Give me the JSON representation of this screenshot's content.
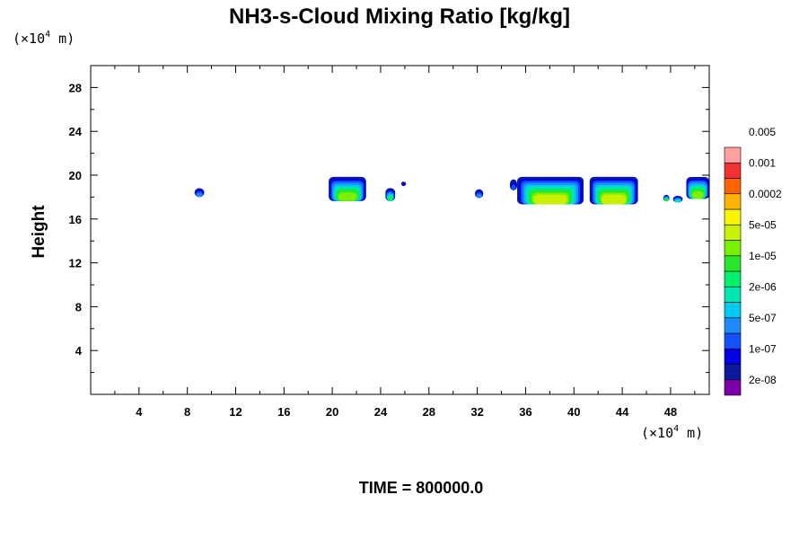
{
  "chart_data": {
    "type": "contour",
    "title": "NH3-s-Cloud Mixing Ratio [kg/kg]",
    "xlabel": "",
    "ylabel": "Height",
    "x_unit": {
      "prefix": "(×10",
      "exponent": "4",
      "suffix": " m)"
    },
    "y_unit": {
      "prefix": "(×10",
      "exponent": "4",
      "suffix": " m)"
    },
    "xlim": [
      0,
      51.2
    ],
    "ylim": [
      0,
      30
    ],
    "xticks": [
      4,
      8,
      12,
      16,
      20,
      24,
      28,
      32,
      36,
      40,
      44,
      48
    ],
    "yticks": [
      4,
      8,
      12,
      16,
      20,
      24,
      28
    ],
    "annotation": "TIME = 800000.0",
    "colorbar": {
      "colors": [
        "#7b00a8",
        "#0a1a9c",
        "#0000e6",
        "#1450ff",
        "#1e8cff",
        "#00c8f0",
        "#00e6b4",
        "#00f06e",
        "#28e628",
        "#78f000",
        "#c8f000",
        "#f5f500",
        "#ffb400",
        "#ff6400",
        "#f03232",
        "#ffa0a0"
      ],
      "labels": [
        "2e-08",
        "1e-07",
        "5e-07",
        "2e-06",
        "1e-05",
        "5e-05",
        "0.0002",
        "0.001",
        "0.005"
      ]
    },
    "cloud_patches": [
      {
        "x0": 8.6,
        "x1": 9.4,
        "y0": 18.0,
        "y1": 18.8,
        "max_level": 4
      },
      {
        "x0": 19.7,
        "x1": 22.8,
        "y0": 17.6,
        "y1": 19.8,
        "max_level": 9
      },
      {
        "x0": 24.4,
        "x1": 25.2,
        "y0": 17.6,
        "y1": 18.8,
        "max_level": 7
      },
      {
        "x0": 25.7,
        "x1": 26.1,
        "y0": 19.0,
        "y1": 19.4,
        "max_level": 2
      },
      {
        "x0": 31.8,
        "x1": 32.5,
        "y0": 17.9,
        "y1": 18.7,
        "max_level": 4
      },
      {
        "x0": 34.7,
        "x1": 35.3,
        "y0": 18.6,
        "y1": 19.6,
        "max_level": 3
      },
      {
        "x0": 35.3,
        "x1": 40.8,
        "y0": 17.3,
        "y1": 19.8,
        "max_level": 10
      },
      {
        "x0": 41.3,
        "x1": 45.3,
        "y0": 17.3,
        "y1": 19.8,
        "max_level": 10
      },
      {
        "x0": 47.4,
        "x1": 47.9,
        "y0": 17.6,
        "y1": 18.2,
        "max_level": 8
      },
      {
        "x0": 48.2,
        "x1": 49.0,
        "y0": 17.5,
        "y1": 18.1,
        "max_level": 6
      },
      {
        "x0": 49.3,
        "x1": 51.2,
        "y0": 17.8,
        "y1": 19.8,
        "max_level": 9
      }
    ]
  }
}
